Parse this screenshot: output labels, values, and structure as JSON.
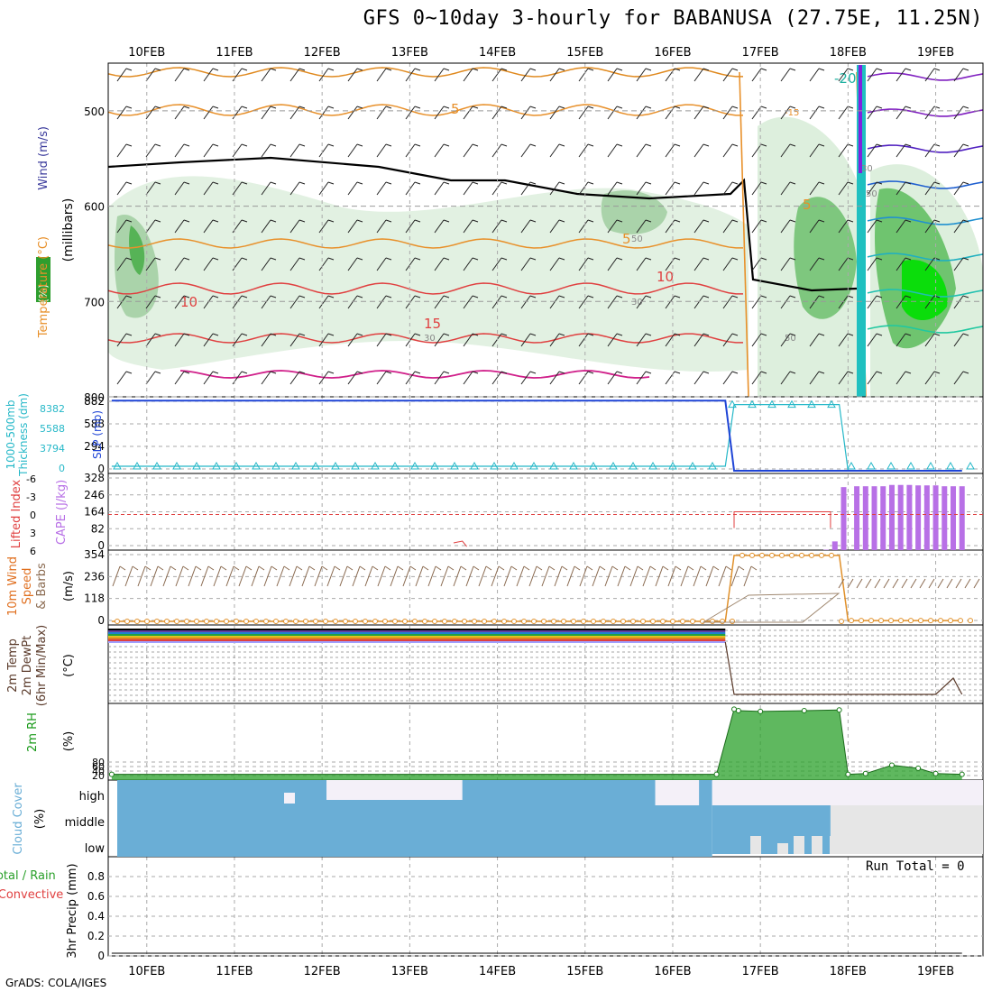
{
  "title": "GFS 0~10day 3-hourly for BABANUSA (27.75E, 11.25N)",
  "footer": "GrADS: COLA/IGES",
  "dates": [
    "10FEB",
    "11FEB",
    "12FEB",
    "13FEB",
    "14FEB",
    "15FEB",
    "16FEB",
    "17FEB",
    "18FEB",
    "19FEB"
  ],
  "colors": {
    "rh": "#2e9e2e",
    "temperature": "#e8902a",
    "wind": "#3b3b9c",
    "thickness": "#26b8c8",
    "slp": "#1f45d6",
    "lifted": "#e04040",
    "cape": "#b870e6",
    "windspeed": "#e0902a",
    "temp2m": "#5a3a2a",
    "rh2m": "#1a9a1a",
    "cloud": "#6aaed6",
    "precip": "#e04040"
  },
  "chart_data": [
    {
      "type": "heatmap",
      "panel": "upper-air",
      "ylabel": "(millibars)",
      "ylabel_left": [
        "RH (%)",
        "Temperature (°C)",
        "Wind (m/s)"
      ],
      "yticks": [
        500,
        600,
        700,
        800
      ],
      "ylim": [
        800,
        450
      ],
      "contour_labels": [
        "5",
        "5",
        "5",
        "10",
        "10",
        "15",
        "-20",
        "-15",
        "50",
        "30",
        "30",
        "50",
        "50",
        "30"
      ]
    },
    {
      "type": "line",
      "panel": "thickness-slp",
      "ylabel_left": [
        "1000-500mb",
        "Thickness (dm)"
      ],
      "ylabel_right": "SLP (mb)",
      "yticks_left": [
        "0",
        "3794",
        "5588",
        "8382"
      ],
      "yticks_right": [
        "0",
        "294",
        "588",
        "882"
      ],
      "series": [
        {
          "name": "Thickness",
          "x": [
            9.6,
            16.6,
            16.7,
            17.9,
            18.0,
            19.3
          ],
          "values": [
            60,
            60,
            882,
            882,
            0,
            0
          ]
        },
        {
          "name": "SLP",
          "x": [
            9.6,
            16.6,
            16.7,
            17.9,
            18.0,
            19.3
          ],
          "values": [
            935,
            935,
            0,
            0,
            0,
            0
          ]
        }
      ]
    },
    {
      "type": "bar",
      "panel": "lifted-cape",
      "ylabel_left": "Lifted Index",
      "ylabel_right": "CAPE (J/kg)",
      "yticks_left": [
        "-6",
        "-3",
        "0",
        "3",
        "6"
      ],
      "yticks_right": [
        "0",
        "82",
        "164",
        "246",
        "328"
      ],
      "series": [
        {
          "name": "CAPE",
          "x": [
            17.75,
            17.85,
            17.95,
            18.1,
            18.2,
            18.3,
            18.4,
            18.5,
            18.6,
            18.7,
            18.8,
            18.9,
            19.0,
            19.1,
            19.2,
            19.3
          ],
          "values": [
            2,
            40,
            290,
            294,
            294,
            294,
            294,
            300,
            300,
            300,
            298,
            298,
            298,
            294,
            294,
            294
          ]
        },
        {
          "name": "Lifted Index",
          "x": [
            13.5,
            13.6,
            16.7,
            17.8
          ],
          "values": [
            0.7,
            0.5,
            0,
            0
          ]
        }
      ]
    },
    {
      "type": "line",
      "panel": "wind10m",
      "ylabel_left": [
        "10m Wind",
        "Speed",
        "& Barbs"
      ],
      "ylabel_right": "(m/s)",
      "yticks": [
        "0",
        "118",
        "236",
        "354"
      ],
      "series": [
        {
          "name": "Speed",
          "x": [
            9.6,
            16.6,
            16.7,
            17.9,
            18.0,
            19.3
          ],
          "values": [
            5,
            5,
            385,
            385,
            10,
            10
          ]
        }
      ]
    },
    {
      "type": "line",
      "panel": "temp2m",
      "ylabel_left": [
        "2m Temp",
        "2m DewPt",
        "(6hr Min/Max)"
      ],
      "ylabel_right": "(°C)",
      "series": [
        {
          "name": "2m Temp",
          "x": [
            9.6,
            16.6,
            16.7,
            19.3
          ],
          "values": [
            1,
            1,
            0,
            0
          ]
        }
      ]
    },
    {
      "type": "area",
      "panel": "rh2m",
      "ylabel_left": "2m RH",
      "ylabel_right": "(%)",
      "yticks": [
        "20",
        "40",
        "60",
        "80"
      ],
      "series": [
        {
          "name": "2m RH",
          "x": [
            9.6,
            16.5,
            16.7,
            16.75,
            17.0,
            17.5,
            17.9,
            18.0,
            18.2,
            18.5,
            18.8,
            19.0,
            19.3
          ],
          "values": [
            20,
            20,
            450,
            440,
            435,
            440,
            445,
            20,
            25,
            80,
            60,
            25,
            20
          ]
        }
      ]
    },
    {
      "type": "heatmap",
      "panel": "cloud",
      "ylabel_left": "Cloud Cover",
      "ylabel_right": "(%)",
      "rows": [
        "high",
        "middle",
        "low"
      ]
    },
    {
      "type": "line",
      "panel": "precip",
      "ylabel_left": [
        "Total / Rain",
        "Convective"
      ],
      "ylabel_right": "3hr Precip (mm)",
      "yticks": [
        "0",
        "0.2",
        "0.4",
        "0.6",
        "0.8"
      ],
      "run_total": "Run Total = 0",
      "series": [
        {
          "name": "Precip",
          "x": [
            9.6,
            19.3
          ],
          "values": [
            0,
            0
          ]
        }
      ]
    }
  ]
}
